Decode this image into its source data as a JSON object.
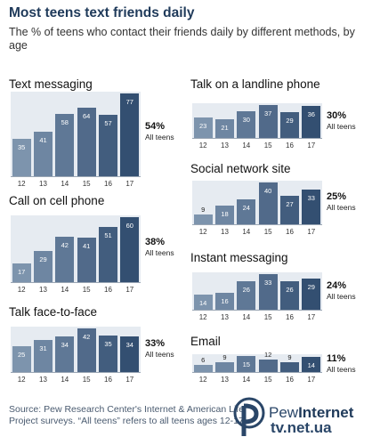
{
  "header": {
    "title": "Most teens text friends daily",
    "subtitle": "The % of teens who contact their friends daily by different methods, by age"
  },
  "chart_data": [
    {
      "type": "bar",
      "title": "Text messaging",
      "categories": [
        "12",
        "13",
        "14",
        "15",
        "16",
        "17"
      ],
      "values": [
        35,
        41,
        58,
        64,
        57,
        77
      ],
      "all_teens_pct": "54%",
      "all_teens_label": "All teens"
    },
    {
      "type": "bar",
      "title": "Call on cell phone",
      "categories": [
        "12",
        "13",
        "14",
        "15",
        "16",
        "17"
      ],
      "values": [
        17,
        29,
        42,
        41,
        51,
        60
      ],
      "all_teens_pct": "38%",
      "all_teens_label": "All teens"
    },
    {
      "type": "bar",
      "title": "Talk face-to-face",
      "categories": [
        "12",
        "13",
        "14",
        "15",
        "16",
        "17"
      ],
      "values": [
        25,
        31,
        34,
        42,
        35,
        34
      ],
      "all_teens_pct": "33%",
      "all_teens_label": "All teens"
    },
    {
      "type": "bar",
      "title": "Talk on a landline phone",
      "categories": [
        "12",
        "13",
        "14",
        "15",
        "16",
        "17"
      ],
      "values": [
        23,
        21,
        30,
        37,
        29,
        36
      ],
      "all_teens_pct": "30%",
      "all_teens_label": "All teens"
    },
    {
      "type": "bar",
      "title": "Social network site",
      "categories": [
        "12",
        "13",
        "14",
        "15",
        "16",
        "17"
      ],
      "values": [
        9,
        18,
        24,
        40,
        27,
        33
      ],
      "all_teens_pct": "25%",
      "all_teens_label": "All teens"
    },
    {
      "type": "bar",
      "title": "Instant messaging",
      "categories": [
        "12",
        "13",
        "14",
        "15",
        "16",
        "17"
      ],
      "values": [
        14,
        16,
        26,
        33,
        26,
        29
      ],
      "all_teens_pct": "24%",
      "all_teens_label": "All teens"
    },
    {
      "type": "bar",
      "title": "Email",
      "categories": [
        "12",
        "13",
        "14",
        "15",
        "16",
        "17"
      ],
      "values": [
        6,
        9,
        15,
        12,
        9,
        14
      ],
      "all_teens_pct": "11%",
      "all_teens_label": "All teens"
    }
  ],
  "colors": {
    "bars": [
      "#7d94ad",
      "#6e86a2",
      "#5f7896",
      "#516a8a",
      "#425d7e",
      "#334f71"
    ],
    "plot_background": "#e6ebf1",
    "title": "#1f3a5a"
  },
  "footer": {
    "source": "Source: Pew Research Center's Internet & American Life Project surveys. “All teens” refers to all teens ages 12-17.",
    "logo_text_a": "Pew",
    "logo_text_b": "Internet",
    "logo_url": "tv.net.ua"
  }
}
